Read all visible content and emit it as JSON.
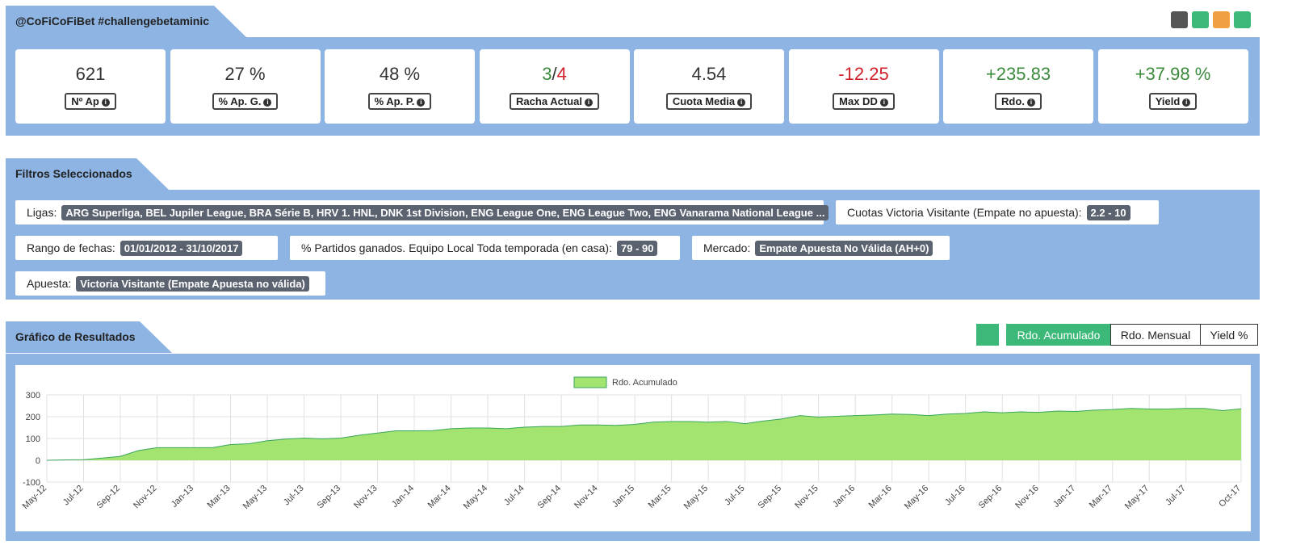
{
  "header": {
    "title": "@CoFiCoFiBet #challengebetaminic"
  },
  "stats": [
    {
      "value": "621",
      "label": "Nº Ap"
    },
    {
      "value": "27 %",
      "label": "% Ap. G."
    },
    {
      "value": "48 %",
      "label": "% Ap. P."
    },
    {
      "value_parts": [
        "3",
        "/",
        "4"
      ],
      "label": "Racha Actual"
    },
    {
      "value": "4.54",
      "label": "Cuota Media"
    },
    {
      "value": "-12.25",
      "label": "Max DD"
    },
    {
      "value": "+235.83",
      "label": "Rdo."
    },
    {
      "value": "+37.98 %",
      "label": "Yield"
    }
  ],
  "filters_section": {
    "title": "Filtros Seleccionados",
    "filters": [
      {
        "label": "Ligas:",
        "value": "ARG Superliga, BEL Jupiler League, BRA Série B, HRV 1. HNL, DNK 1st Division, ENG League One, ENG League Two, ENG Vanarama National League ..."
      },
      {
        "label": "Cuotas Victoria Visitante (Empate no apuesta):",
        "value": "2.2 - 10"
      },
      {
        "label": "Rango de fechas:",
        "value": "01/01/2012 - 31/10/2017"
      },
      {
        "label": "% Partidos ganados. Equipo Local Toda temporada (en casa):",
        "value": "79 - 90"
      },
      {
        "label": "Mercado:",
        "value": "Empate Apuesta No Válida (AH+0)"
      },
      {
        "label": "Apuesta:",
        "value": "Victoria Visitante (Empate Apuesta no válida)"
      }
    ]
  },
  "chart_section": {
    "title": "Gráfico de Resultados",
    "buttons": [
      "Rdo. Acumulado",
      "Rdo. Mensual",
      "Yield %"
    ]
  },
  "chart_data": {
    "type": "area",
    "categories": [
      "May-12",
      null,
      "Jul-12",
      null,
      "Sep-12",
      null,
      "Nov-12",
      null,
      "Jan-13",
      null,
      "Mar-13",
      null,
      "May-13",
      null,
      "Jul-13",
      null,
      "Sep-13",
      null,
      "Nov-13",
      null,
      "Jan-14",
      null,
      "Mar-14",
      null,
      "May-14",
      null,
      "Jul-14",
      null,
      "Sep-14",
      null,
      "Nov-14",
      null,
      "Jan-15",
      null,
      "Mar-15",
      null,
      "May-15",
      null,
      "Jul-15",
      null,
      "Sep-15",
      null,
      "Nov-15",
      null,
      "Jan-16",
      null,
      "Mar-16",
      null,
      "May-16",
      null,
      "Jul-16",
      null,
      "Sep-16",
      null,
      "Nov-16",
      null,
      "Jan-17",
      null,
      "Mar-17",
      null,
      "May-17",
      null,
      "Jul-17",
      null,
      null,
      "Oct-17"
    ],
    "series": [
      {
        "name": "Rdo. Acumulado",
        "color": "#a3e36f",
        "line_color": "#3aa55c",
        "values": [
          0,
          2,
          3,
          10,
          18,
          45,
          58,
          58,
          58,
          58,
          72,
          76,
          90,
          97,
          102,
          98,
          102,
          115,
          125,
          135,
          135,
          136,
          145,
          148,
          148,
          145,
          152,
          155,
          155,
          162,
          162,
          160,
          165,
          175,
          178,
          178,
          175,
          178,
          168,
          180,
          190,
          205,
          198,
          202,
          205,
          208,
          212,
          210,
          205,
          212,
          215,
          222,
          218,
          222,
          220,
          226,
          224,
          230,
          233,
          238,
          235,
          235,
          238,
          238,
          228,
          236
        ]
      }
    ],
    "ylim": [
      -100,
      300
    ],
    "yticks": [
      -100,
      0,
      100,
      200,
      300
    ],
    "grid": true,
    "legend": "top"
  }
}
